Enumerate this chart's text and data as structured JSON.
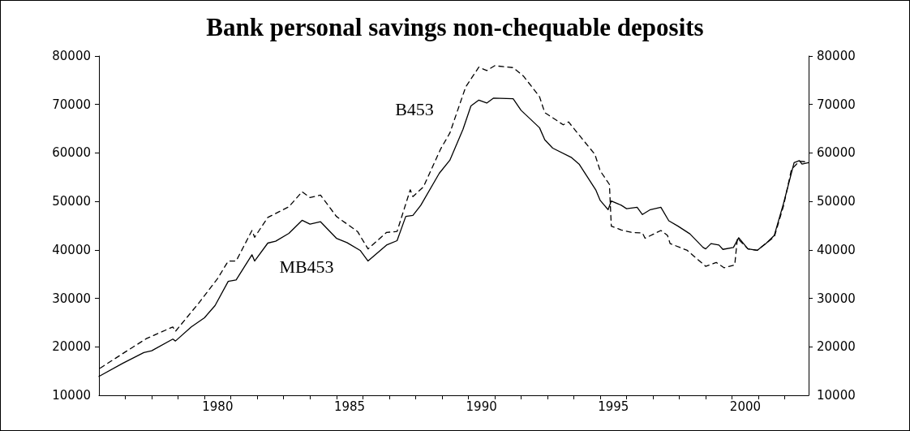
{
  "chart_data": {
    "type": "line",
    "title": "Bank personal savings non-chequable deposits",
    "xlim": [
      1975.5,
      2002.4
    ],
    "xticks": [
      {
        "value": 1976.5,
        "label": null
      },
      {
        "value": 1977.5,
        "label": null
      },
      {
        "value": 1978.5,
        "label": null
      },
      {
        "value": 1979.5,
        "label": null
      },
      1980,
      {
        "value": 1980.5,
        "label": null
      },
      {
        "value": 1981.5,
        "label": null
      },
      {
        "value": 1982.5,
        "label": null
      },
      {
        "value": 1983.5,
        "label": null
      },
      {
        "value": 1984.5,
        "label": null
      },
      1985,
      {
        "value": 1985.5,
        "label": null
      },
      {
        "value": 1986.5,
        "label": null
      },
      {
        "value": 1987.5,
        "label": null
      },
      {
        "value": 1988.5,
        "label": null
      },
      {
        "value": 1989.5,
        "label": null
      },
      1990,
      {
        "value": 1990.5,
        "label": null
      },
      {
        "value": 1991.5,
        "label": null
      },
      {
        "value": 1992.5,
        "label": null
      },
      {
        "value": 1993.5,
        "label": null
      },
      {
        "value": 1994.5,
        "label": null
      },
      1995,
      {
        "value": 1995.5,
        "label": null
      },
      {
        "value": 1996.5,
        "label": null
      },
      {
        "value": 1997.5,
        "label": null
      },
      {
        "value": 1998.5,
        "label": null
      },
      {
        "value": 1999.5,
        "label": null
      },
      2000,
      {
        "value": 2000.5,
        "label": null
      },
      {
        "value": 2001.5,
        "label": null
      }
    ],
    "ylim": [
      10000,
      80000
    ],
    "yticks": [
      10000,
      20000,
      30000,
      40000,
      50000,
      60000,
      70000,
      80000
    ],
    "y2lim": [
      10000,
      80000
    ],
    "y2ticks": [
      10000,
      20000,
      30000,
      40000,
      50000,
      60000,
      70000,
      80000
    ],
    "annotations": [
      "B453",
      "MB453"
    ],
    "series": [
      {
        "color": "#000000",
        "line_style": "dashed",
        "x": [
          1975.55,
          1976.4,
          1977.3,
          1978.3,
          1978.4,
          1979.25,
          1980.0,
          1980.4,
          1980.7,
          1981.3,
          1981.4,
          1981.9,
          1982.7,
          1983.2,
          1983.5,
          1983.9,
          1984.5,
          1985.3,
          1985.7,
          1986.4,
          1986.8,
          1987.3,
          1987.4,
          1987.8,
          1988.45,
          1988.8,
          1989.4,
          1989.9,
          1990.2,
          1990.5,
          1991.2,
          1991.6,
          1992.2,
          1992.4,
          1992.8,
          1993.1,
          1993.3,
          1993.7,
          1994.3,
          1994.5,
          1994.85,
          1994.92,
          1995.3,
          1995.7,
          1996.1,
          1996.2,
          1996.8,
          1997.05,
          1997.15,
          1997.8,
          1998.5,
          1998.9,
          1999.2,
          1999.6,
          1999.7,
          2000.1,
          2000.45,
          2001.1,
          2001.45,
          2001.75,
          2002.05,
          2002.4
        ],
        "values": [
          15600,
          18600,
          21700,
          24100,
          23200,
          28800,
          34100,
          37700,
          37700,
          44000,
          42600,
          46700,
          48900,
          52000,
          50800,
          51300,
          46900,
          43800,
          40200,
          43600,
          43800,
          52400,
          51000,
          53000,
          60800,
          64100,
          73600,
          77700,
          77000,
          78000,
          77600,
          75800,
          71600,
          68300,
          66900,
          65800,
          66400,
          63700,
          59700,
          56300,
          53500,
          44900,
          44100,
          43600,
          43500,
          42400,
          44000,
          43000,
          41300,
          39900,
          36600,
          37400,
          36300,
          36900,
          42400,
          40200,
          39900,
          42700,
          49100,
          56600,
          58300,
          58100
        ]
      },
      {
        "color": "#000000",
        "line_style": "solid",
        "x": [
          1975.5,
          1976.4,
          1977.2,
          1977.5,
          1978.3,
          1978.4,
          1979.0,
          1979.5,
          1979.9,
          1980.4,
          1980.7,
          1981.3,
          1981.4,
          1981.9,
          1982.2,
          1982.7,
          1983.2,
          1983.5,
          1983.9,
          1984.5,
          1984.9,
          1985.4,
          1985.7,
          1986.4,
          1986.8,
          1987.13,
          1987.4,
          1987.7,
          1988.4,
          1988.8,
          1989.3,
          1989.6,
          1989.9,
          1990.2,
          1990.45,
          1991.2,
          1991.5,
          1992.2,
          1992.4,
          1992.7,
          1993.4,
          1993.7,
          1994.33,
          1994.5,
          1994.8,
          1994.92,
          1995.3,
          1995.5,
          1995.9,
          1996.1,
          1996.4,
          1996.8,
          1997.1,
          1997.45,
          1997.9,
          1998.4,
          1998.5,
          1998.7,
          1999.0,
          1999.15,
          1999.55,
          1999.75,
          2000.1,
          2000.45,
          2000.8,
          2001.1,
          2001.45,
          2001.85,
          2002.05,
          2002.15,
          2002.4
        ],
        "values": [
          13900,
          16600,
          18800,
          19200,
          21600,
          21200,
          24100,
          26000,
          28500,
          33500,
          33800,
          39000,
          37700,
          41400,
          41800,
          43400,
          46100,
          45300,
          45800,
          42400,
          41500,
          39900,
          37700,
          41000,
          41900,
          46900,
          47100,
          49200,
          55800,
          58500,
          64900,
          69700,
          70900,
          70300,
          71300,
          71200,
          68800,
          65200,
          62700,
          61000,
          59100,
          57700,
          52400,
          50200,
          48300,
          50100,
          49200,
          48500,
          48800,
          47300,
          48300,
          48800,
          46000,
          44900,
          43300,
          40500,
          40200,
          41300,
          41000,
          40100,
          40500,
          42500,
          40200,
          39900,
          41400,
          43000,
          49600,
          58000,
          58400,
          57700,
          58000
        ]
      }
    ]
  }
}
